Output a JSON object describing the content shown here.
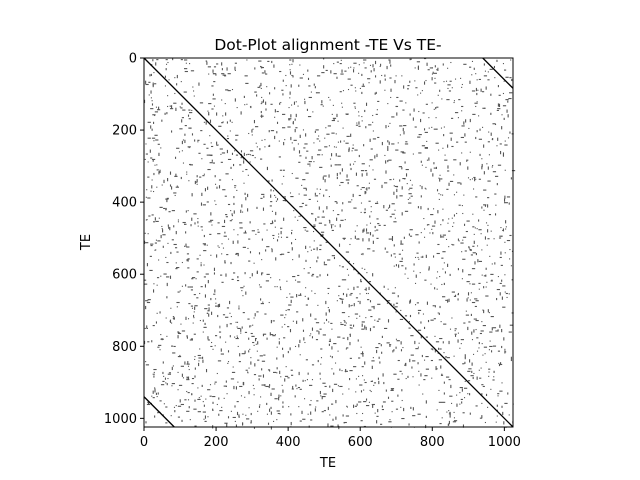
{
  "chart_data": {
    "type": "heatmap",
    "title": "Dot-Plot alignment -TE Vs TE-",
    "xlabel": "TE",
    "ylabel": "TE",
    "xlim": [
      0,
      1024
    ],
    "ylim": [
      1024,
      0
    ],
    "x_ticks": [
      0,
      200,
      400,
      600,
      800,
      1000
    ],
    "y_ticks": [
      0,
      200,
      400,
      600,
      800,
      1000
    ],
    "grid": false,
    "colormap": "gray_r",
    "colors": {
      "match": "#000000",
      "background": "#ffffff",
      "match_scattered": "#555555"
    },
    "sequence_length": 1024,
    "diagonals": [
      {
        "name": "main-diagonal",
        "from": [
          0,
          0
        ],
        "to": [
          1024,
          1024
        ]
      },
      {
        "name": "upper-right-diagonal",
        "from": [
          940,
          0
        ],
        "to": [
          1024,
          84
        ]
      },
      {
        "name": "lower-left-diagonal",
        "from": [
          0,
          940
        ],
        "to": [
          84,
          1024
        ]
      }
    ]
  }
}
